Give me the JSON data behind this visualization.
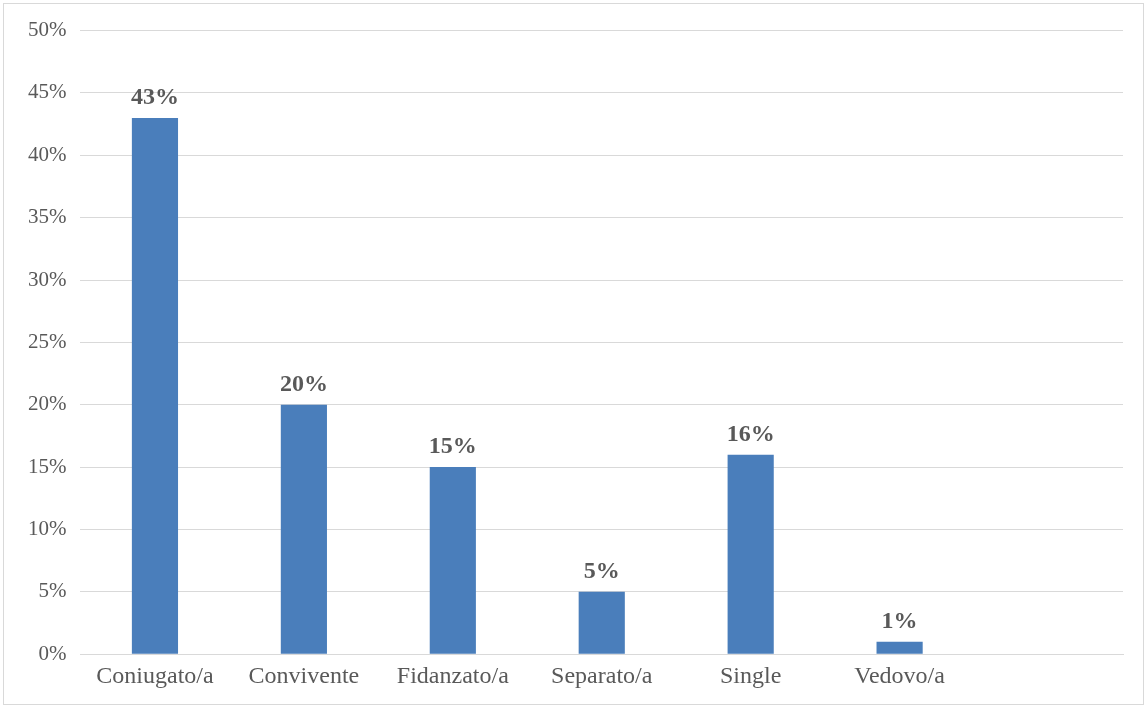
{
  "chart_data": {
    "type": "bar",
    "categories": [
      "Coniugato/a",
      "Convivente",
      "Fidanzato/a",
      "Separato/a",
      "Single",
      "Vedovo/a",
      null
    ],
    "values": [
      43,
      20,
      15,
      5,
      16,
      1,
      null
    ],
    "value_labels": [
      "43%",
      "20%",
      "15%",
      "5%",
      "16%",
      "1%",
      null
    ],
    "color": "#4a7ebb",
    "ylim": [
      0,
      50
    ],
    "yticks": [
      {
        "value": 0,
        "label": "0%"
      },
      {
        "value": 5,
        "label": "5%"
      },
      {
        "value": 10,
        "label": "10%"
      },
      {
        "value": 15,
        "label": "15%"
      },
      {
        "value": 20,
        "label": "20%"
      },
      {
        "value": 25,
        "label": "25%"
      },
      {
        "value": 30,
        "label": "30%"
      },
      {
        "value": 35,
        "label": "35%"
      },
      {
        "value": 40,
        "label": "40%"
      },
      {
        "value": 45,
        "label": "45%"
      },
      {
        "value": 50,
        "label": "50%"
      }
    ],
    "grid": "y",
    "legend": false
  }
}
